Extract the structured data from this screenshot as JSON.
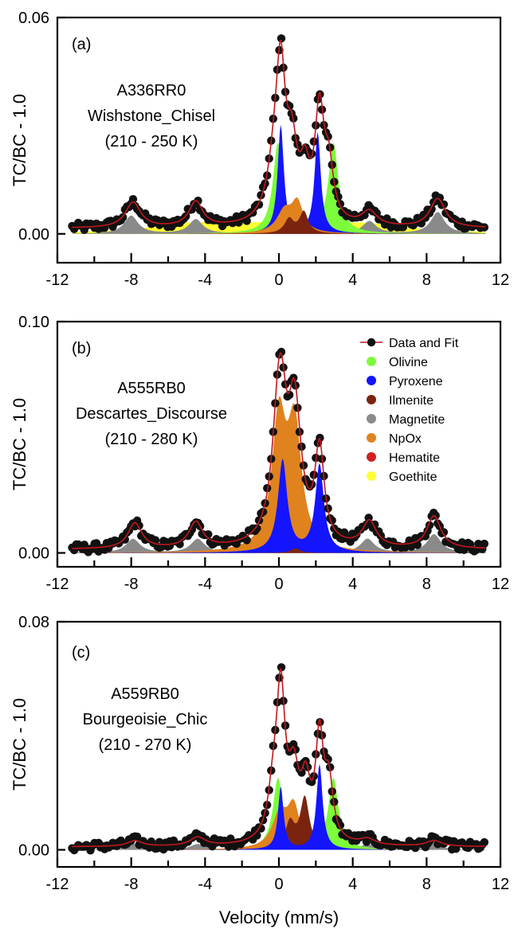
{
  "xlabel": "Velocity (mm/s)",
  "ylabel": "TC/BC - 1.0",
  "xlim": [
    -12,
    12
  ],
  "x_ticks": [
    "-12",
    "-8",
    "-4",
    "0",
    "4",
    "8",
    "12"
  ],
  "colors": {
    "data_and_fit": "#c0181e",
    "data_point": "#111111",
    "Olivine": "#7cfc3a",
    "Pyroxene": "#1414ff",
    "Ilmenite": "#7a2410",
    "Magnetite": "#8a8a8a",
    "NpOx": "#e0821e",
    "Hematite": "#d42020",
    "Goethite": "#ffff33"
  },
  "legend": {
    "placement": "top-right of panel (b)",
    "items": [
      "Data and Fit",
      "Olivine",
      "Pyroxene",
      "Ilmenite",
      "Magnetite",
      "NpOx",
      "Hematite",
      "Goethite"
    ]
  },
  "chart_data": [
    {
      "type": "area",
      "panel_label": "(a)",
      "sample": "A336RR0",
      "target": "Wishstone_Chisel",
      "temperature": "(210 - 250 K)",
      "ylim": [
        -0.008,
        0.06
      ],
      "y_ticks": [
        "0.06",
        "0.00"
      ],
      "y_tick_values": [
        0.06,
        0.0
      ],
      "components": [
        {
          "name": "Goethite",
          "peaks": [
            [
              -4.6,
              0.0025,
              2.8
            ],
            [
              4.6,
              0.0025,
              2.8
            ],
            [
              -0.3,
              0.002,
              2.5
            ]
          ]
        },
        {
          "name": "Magnetite",
          "peaks": [
            [
              -8.0,
              0.005,
              0.45
            ],
            [
              -4.5,
              0.004,
              0.45
            ],
            [
              -0.9,
              0.003,
              0.35
            ],
            [
              4.9,
              0.0035,
              0.45
            ],
            [
              8.6,
              0.006,
              0.45
            ]
          ]
        },
        {
          "name": "Olivine",
          "peaks": [
            [
              -0.05,
              0.025,
              0.33
            ],
            [
              2.95,
              0.025,
              0.33
            ]
          ]
        },
        {
          "name": "Pyroxene",
          "peaks": [
            [
              0.1,
              0.03,
              0.2
            ],
            [
              2.1,
              0.028,
              0.2
            ]
          ]
        },
        {
          "name": "NpOx",
          "peaks": [
            [
              0.3,
              0.006,
              0.5
            ],
            [
              1.0,
              0.008,
              0.38
            ]
          ]
        },
        {
          "name": "Ilmenite",
          "peaks": [
            [
              0.55,
              0.004,
              0.3
            ],
            [
              1.35,
              0.006,
              0.28
            ]
          ]
        }
      ],
      "fit_peaks": [
        [
          -7.9,
          0.007,
          0.5
        ],
        [
          -4.5,
          0.007,
          0.45
        ],
        [
          -0.2,
          0.015,
          0.5
        ],
        [
          0.1,
          0.035,
          0.3
        ],
        [
          0.7,
          0.018,
          0.35
        ],
        [
          1.4,
          0.012,
          0.3
        ],
        [
          2.2,
          0.03,
          0.3
        ],
        [
          2.7,
          0.014,
          0.3
        ],
        [
          4.9,
          0.004,
          0.5
        ],
        [
          8.6,
          0.008,
          0.5
        ]
      ],
      "fit_baseline": 0.0015
    },
    {
      "type": "area",
      "panel_label": "(b)",
      "sample": "A555RB0",
      "target": "Descartes_Discourse",
      "temperature": "(210 - 280 K)",
      "ylim": [
        -0.006,
        0.1
      ],
      "y_ticks": [
        "0.10",
        "0.00"
      ],
      "y_tick_values": [
        0.1,
        0.0
      ],
      "components": [
        {
          "name": "Goethite",
          "peaks": [
            [
              0.5,
              0.002,
              3.5
            ]
          ]
        },
        {
          "name": "Hematite",
          "peaks": [
            [
              -8.2,
              0.002,
              0.5
            ],
            [
              -4.5,
              0.002,
              0.5
            ],
            [
              4.8,
              0.002,
              0.5
            ],
            [
              8.1,
              0.002,
              0.5
            ],
            [
              -0.3,
              0.003,
              0.3
            ],
            [
              1.6,
              0.003,
              0.3
            ]
          ]
        },
        {
          "name": "Magnetite",
          "peaks": [
            [
              -7.9,
              0.006,
              0.45
            ],
            [
              -4.4,
              0.006,
              0.45
            ],
            [
              -0.6,
              0.004,
              0.3
            ],
            [
              1.8,
              0.004,
              0.3
            ],
            [
              4.8,
              0.006,
              0.45
            ],
            [
              8.4,
              0.008,
              0.45
            ]
          ]
        },
        {
          "name": "Olivine",
          "peaks": [
            [
              -0.2,
              0.004,
              0.3
            ],
            [
              2.8,
              0.004,
              0.3
            ]
          ]
        },
        {
          "name": "NpOx",
          "peaks": [
            [
              0.0,
              0.056,
              0.45
            ],
            [
              0.85,
              0.052,
              0.45
            ]
          ]
        },
        {
          "name": "Pyroxene",
          "peaks": [
            [
              0.2,
              0.04,
              0.3
            ],
            [
              2.2,
              0.038,
              0.28
            ]
          ]
        },
        {
          "name": "Ilmenite",
          "peaks": [
            [
              0.9,
              0.002,
              0.3
            ]
          ]
        }
      ],
      "fit_peaks": [
        [
          -7.8,
          0.011,
          0.45
        ],
        [
          -4.5,
          0.011,
          0.45
        ],
        [
          0.0,
          0.06,
          0.42
        ],
        [
          0.2,
          0.015,
          0.3
        ],
        [
          0.85,
          0.057,
          0.42
        ],
        [
          2.2,
          0.04,
          0.3
        ],
        [
          4.9,
          0.011,
          0.45
        ],
        [
          8.4,
          0.014,
          0.45
        ]
      ],
      "fit_baseline": 0.0015
    },
    {
      "type": "area",
      "panel_label": "(c)",
      "sample": "A559RB0",
      "target": "Bourgeoisie_Chic",
      "temperature": "(210 - 270 K)",
      "ylim": [
        -0.006,
        0.08
      ],
      "y_ticks": [
        "0.08",
        "0.00"
      ],
      "y_tick_values": [
        0.08,
        0.0
      ],
      "components": [
        {
          "name": "Magnetite",
          "peaks": [
            [
              -7.8,
              0.002,
              0.45
            ],
            [
              -4.4,
              0.002,
              0.45
            ],
            [
              4.8,
              0.002,
              0.45
            ],
            [
              8.4,
              0.002,
              0.45
            ]
          ]
        },
        {
          "name": "Olivine",
          "peaks": [
            [
              -0.05,
              0.025,
              0.33
            ],
            [
              2.95,
              0.025,
              0.33
            ]
          ]
        },
        {
          "name": "NpOx",
          "peaks": [
            [
              0.05,
              0.012,
              0.5
            ],
            [
              0.8,
              0.014,
              0.4
            ]
          ]
        },
        {
          "name": "Ilmenite",
          "peaks": [
            [
              0.6,
              0.009,
              0.3
            ],
            [
              1.4,
              0.018,
              0.3
            ]
          ]
        },
        {
          "name": "Pyroxene",
          "peaks": [
            [
              0.1,
              0.022,
              0.18
            ],
            [
              2.2,
              0.03,
              0.2
            ]
          ]
        }
      ],
      "fit_peaks": [
        [
          -7.8,
          0.002,
          0.5
        ],
        [
          -4.4,
          0.003,
          0.5
        ],
        [
          -0.3,
          0.015,
          0.35
        ],
        [
          0.1,
          0.05,
          0.28
        ],
        [
          0.8,
          0.022,
          0.35
        ],
        [
          1.45,
          0.018,
          0.3
        ],
        [
          2.2,
          0.035,
          0.25
        ],
        [
          2.7,
          0.02,
          0.28
        ],
        [
          4.8,
          0.002,
          0.5
        ],
        [
          8.4,
          0.002,
          0.5
        ]
      ],
      "fit_baseline": 0.001
    }
  ]
}
